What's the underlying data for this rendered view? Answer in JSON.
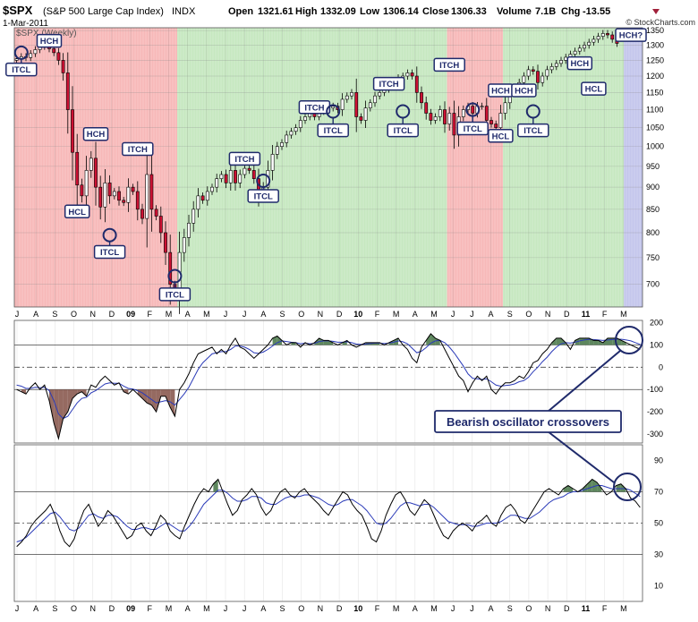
{
  "header": {
    "symbol": "$SPX",
    "name": "(S&P 500 Large Cap Index)",
    "exchange": "INDX",
    "date": "1-Mar-2011",
    "open_label": "Open",
    "open": "1321.61",
    "high_label": "High",
    "high": "1332.09",
    "low_label": "Low",
    "low": "1306.14",
    "close_label": "Close",
    "close": "1306.33",
    "volume_label": "Volume",
    "volume": "7.1B",
    "chg_label": "Chg",
    "chg": "-13.55",
    "watermark": "© StockCharts.com",
    "legend": "$SPX (Weekly)"
  },
  "colors": {
    "bear_zone": "#f7b8b8",
    "bull_zone": "#c6e8c0",
    "last_zone": "#c4c6ec",
    "up_candle": "#ffffff",
    "down_candle": "#cc1133",
    "annotation": "#1f2a6b",
    "osc_line": "#000000",
    "osc_signal": "#2a3ab8",
    "osc_fill_pos": "#4d7a4d",
    "osc_fill_neg": "#8a5a50"
  },
  "callout": {
    "text": "Bearish oscillator crossovers"
  },
  "chart_data": [
    {
      "type": "candlestick",
      "title": "$SPX (S&P 500 Large Cap Index) INDX",
      "x_months": [
        "J",
        "A",
        "S",
        "O",
        "N",
        "D",
        "09",
        "F",
        "M",
        "A",
        "M",
        "J",
        "J",
        "A",
        "S",
        "O",
        "N",
        "D",
        "10",
        "F",
        "M",
        "A",
        "M",
        "J",
        "J",
        "A",
        "S",
        "O",
        "N",
        "D",
        "11",
        "F",
        "M"
      ],
      "y_ticks": [
        700,
        750,
        800,
        850,
        900,
        950,
        1000,
        1050,
        1100,
        1150,
        1200,
        1250,
        1300,
        1350
      ],
      "ylim": [
        660,
        1360
      ],
      "y_scale": "log",
      "week_start": "2008-07-04",
      "weekly_closes": [
        1255,
        1262,
        1259,
        1272,
        1285,
        1296,
        1300,
        1288,
        1275,
        1250,
        1210,
        1100,
        985,
        905,
        880,
        940,
        970,
        900,
        855,
        910,
        880,
        890,
        870,
        865,
        900,
        890,
        850,
        830,
        930,
        850,
        835,
        800,
        760,
        700,
        690,
        760,
        790,
        820,
        850,
        880,
        870,
        890,
        900,
        920,
        930,
        910,
        940,
        910,
        930,
        945,
        940,
        920,
        880,
        900,
        940,
        980,
        1000,
        1010,
        1030,
        1040,
        1050,
        1070,
        1080,
        1090,
        1080,
        1095,
        1100,
        1105,
        1110,
        1100,
        1130,
        1140,
        1150,
        1080,
        1070,
        1105,
        1120,
        1140,
        1150,
        1160,
        1175,
        1185,
        1195,
        1200,
        1210,
        1200,
        1150,
        1120,
        1090,
        1070,
        1080,
        1100,
        1060,
        1090,
        1030,
        1080,
        1100,
        1110,
        1090,
        1110,
        1110,
        1070,
        1060,
        1050,
        1090,
        1120,
        1150,
        1160,
        1180,
        1200,
        1220,
        1215,
        1180,
        1200,
        1220,
        1230,
        1240,
        1250,
        1260,
        1270,
        1280,
        1290,
        1300,
        1310,
        1320,
        1330,
        1340,
        1335,
        1320,
        1306
      ],
      "zones": [
        {
          "label": "bear",
          "start_week": 0,
          "end_week": 35
        },
        {
          "label": "bull",
          "start_week": 35,
          "end_week": 93
        },
        {
          "label": "bear",
          "start_week": 93,
          "end_week": 105
        },
        {
          "label": "bull",
          "start_week": 105,
          "end_week": 131
        },
        {
          "label": "last",
          "start_week": 131,
          "end_week": 135
        }
      ],
      "annotations": [
        {
          "label": "HCH",
          "week": 7,
          "price": 1330
        },
        {
          "label": "ITCL",
          "week": 1,
          "price": 1235,
          "circle": true
        },
        {
          "label": "HCH",
          "week": 17,
          "price": 1045
        },
        {
          "label": "ITCH",
          "week": 26,
          "price": 1005
        },
        {
          "label": "HCL",
          "week": 13,
          "price": 855
        },
        {
          "label": "ITCL",
          "week": 20,
          "price": 770,
          "circle": true
        },
        {
          "label": "ITCL",
          "week": 34,
          "price": 690,
          "circle": true
        },
        {
          "label": "ITCH",
          "week": 49,
          "price": 980
        },
        {
          "label": "ITCL",
          "week": 53,
          "price": 890,
          "circle": true
        },
        {
          "label": "ITCH",
          "week": 64,
          "price": 1120
        },
        {
          "label": "ITCL",
          "week": 68,
          "price": 1055,
          "circle": true
        },
        {
          "label": "ITCH",
          "week": 80,
          "price": 1190
        },
        {
          "label": "ITCL",
          "week": 83,
          "price": 1055,
          "circle": true
        },
        {
          "label": "ITCH",
          "week": 93,
          "price": 1250
        },
        {
          "label": "ITCL",
          "week": 98,
          "price": 1060,
          "circle": true
        },
        {
          "label": "HCH",
          "week": 104,
          "price": 1170
        },
        {
          "label": "HCL",
          "week": 104,
          "price": 1040
        },
        {
          "label": "HCH",
          "week": 109,
          "price": 1170
        },
        {
          "label": "ITCL",
          "week": 111,
          "price": 1055,
          "circle": true
        },
        {
          "label": "HCH",
          "week": 121,
          "price": 1255
        },
        {
          "label": "HCL",
          "week": 124,
          "price": 1175
        },
        {
          "label": "HCH?",
          "week": 132,
          "price": 1350
        }
      ]
    },
    {
      "type": "line",
      "title": "",
      "y_ticks": [
        200,
        100,
        0,
        -100,
        -200,
        -300
      ],
      "ylim": [
        -340,
        210
      ],
      "reference_lines": [
        100,
        -100
      ],
      "dashed_lines": [
        0
      ],
      "series": [
        {
          "name": "",
          "values": [
            -100,
            -110,
            -120,
            -90,
            -70,
            -100,
            -80,
            -150,
            -250,
            -320,
            -230,
            -200,
            -140,
            -120,
            -110,
            -130,
            -80,
            -90,
            -60,
            -40,
            -60,
            -80,
            -70,
            -110,
            -120,
            -100,
            -120,
            -140,
            -160,
            -170,
            -200,
            -130,
            -130,
            -180,
            -220,
            -100,
            -70,
            -30,
            20,
            60,
            70,
            80,
            90,
            60,
            80,
            60,
            100,
            130,
            90,
            80,
            60,
            40,
            60,
            80,
            100,
            130,
            140,
            120,
            100,
            110,
            110,
            90,
            110,
            100,
            110,
            130,
            120,
            120,
            110,
            100,
            110,
            120,
            100,
            90,
            100,
            110,
            110,
            110,
            110,
            100,
            110,
            120,
            130,
            100,
            80,
            40,
            20,
            90,
            120,
            150,
            130,
            120,
            80,
            40,
            0,
            -40,
            -60,
            -110,
            -70,
            -40,
            -60,
            -40,
            -100,
            -120,
            -90,
            -70,
            -70,
            -60,
            -40,
            -50,
            -20,
            20,
            30,
            60,
            80,
            110,
            130,
            130,
            110,
            80,
            120,
            130,
            130,
            130,
            120,
            120,
            110,
            130,
            130,
            130,
            120,
            110,
            100,
            90,
            80
          ]
        },
        {
          "name": "",
          "values": [
            -80,
            -85,
            -95,
            -95,
            -90,
            -92,
            -90,
            -105,
            -150,
            -210,
            -230,
            -220,
            -190,
            -160,
            -140,
            -135,
            -115,
            -105,
            -90,
            -75,
            -70,
            -72,
            -72,
            -85,
            -95,
            -98,
            -105,
            -115,
            -130,
            -145,
            -160,
            -155,
            -150,
            -155,
            -170,
            -145,
            -120,
            -90,
            -50,
            -10,
            20,
            40,
            60,
            65,
            70,
            70,
            80,
            95,
            95,
            90,
            80,
            65,
            62,
            68,
            80,
            95,
            110,
            118,
            115,
            112,
            110,
            105,
            108,
            105,
            107,
            115,
            118,
            118,
            116,
            112,
            112,
            114,
            110,
            104,
            102,
            104,
            106,
            108,
            108,
            106,
            108,
            112,
            118,
            114,
            105,
            85,
            65,
            72,
            88,
            108,
            118,
            120,
            110,
            90,
            65,
            35,
            5,
            -30,
            -50,
            -52,
            -55,
            -52,
            -65,
            -80,
            -85,
            -82,
            -80,
            -75,
            -65,
            -60,
            -45,
            -20,
            0,
            25,
            45,
            70,
            90,
            105,
            110,
            108,
            112,
            118,
            122,
            125,
            124,
            122,
            120,
            122,
            124,
            126,
            125,
            122,
            118,
            110,
            102
          ]
        }
      ]
    },
    {
      "type": "line",
      "title": "",
      "y_ticks": [
        90,
        70,
        50,
        30,
        10
      ],
      "ylim": [
        0,
        100
      ],
      "reference_lines": [
        70,
        30
      ],
      "dashed_lines": [
        50
      ],
      "series": [
        {
          "name": "",
          "values": [
            35,
            38,
            42,
            48,
            52,
            55,
            58,
            62,
            55,
            45,
            38,
            35,
            40,
            50,
            58,
            62,
            55,
            48,
            52,
            58,
            55,
            50,
            45,
            40,
            42,
            48,
            50,
            45,
            42,
            48,
            55,
            52,
            45,
            42,
            40,
            48,
            55,
            62,
            68,
            72,
            70,
            75,
            78,
            70,
            62,
            55,
            58,
            65,
            68,
            72,
            68,
            60,
            55,
            58,
            65,
            70,
            72,
            68,
            66,
            70,
            72,
            68,
            65,
            62,
            58,
            55,
            60,
            65,
            70,
            68,
            62,
            58,
            55,
            48,
            40,
            38,
            45,
            55,
            62,
            68,
            70,
            65,
            58,
            55,
            60,
            65,
            62,
            55,
            48,
            42,
            40,
            45,
            48,
            50,
            48,
            45,
            50,
            52,
            55,
            50,
            48,
            55,
            60,
            62,
            58,
            52,
            50,
            55,
            60,
            65,
            70,
            72,
            70,
            68,
            72,
            74,
            72,
            70,
            72,
            75,
            78,
            76,
            72,
            68,
            70,
            74,
            75,
            72,
            66,
            64,
            60
          ]
        },
        {
          "name": "",
          "values": [
            38,
            39,
            41,
            44,
            47,
            50,
            53,
            56,
            57,
            54,
            50,
            46,
            45,
            47,
            51,
            55,
            56,
            54,
            53,
            55,
            55,
            54,
            51,
            48,
            46,
            46,
            47,
            47,
            46,
            46,
            48,
            50,
            49,
            47,
            45,
            45,
            48,
            52,
            57,
            62,
            65,
            68,
            71,
            71,
            69,
            66,
            64,
            64,
            65,
            67,
            67,
            66,
            63,
            62,
            62,
            64,
            66,
            67,
            67,
            67,
            68,
            68,
            67,
            66,
            64,
            62,
            61,
            62,
            64,
            65,
            65,
            63,
            61,
            58,
            54,
            50,
            49,
            50,
            53,
            57,
            61,
            63,
            63,
            62,
            61,
            62,
            62,
            60,
            57,
            54,
            51,
            50,
            49,
            49,
            49,
            48,
            48,
            49,
            50,
            50,
            50,
            51,
            53,
            55,
            55,
            54,
            53,
            53,
            55,
            57,
            60,
            63,
            65,
            66,
            67,
            69,
            70,
            70,
            71,
            72,
            73,
            74,
            74,
            73,
            72,
            72,
            72,
            72,
            71,
            69,
            67
          ]
        }
      ]
    }
  ]
}
